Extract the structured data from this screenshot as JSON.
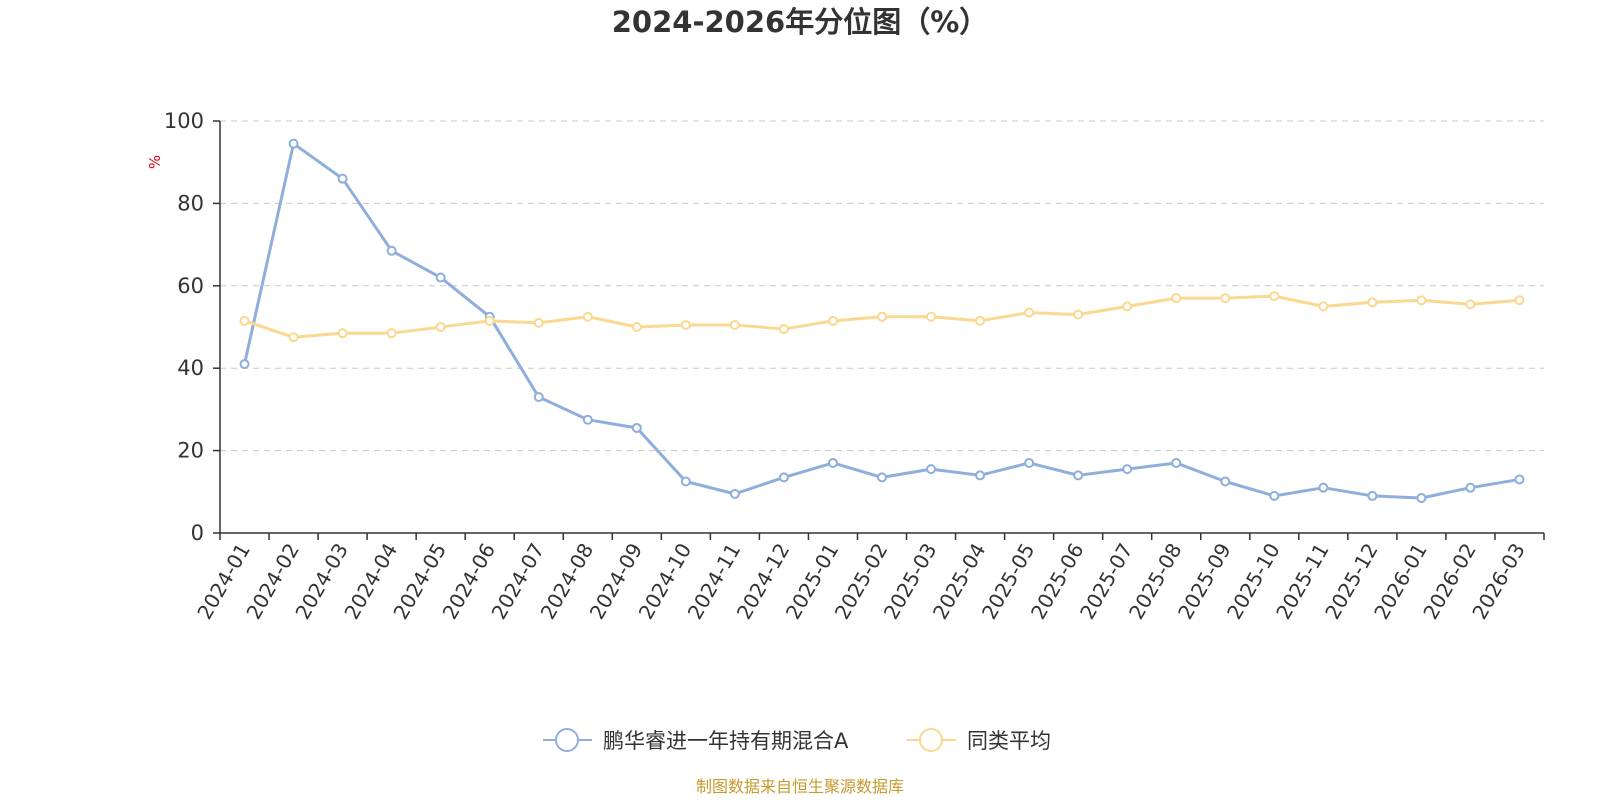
{
  "colors": {
    "series_a": "#8eaedc",
    "series_b": "#fbd88f",
    "grid": "#c8c8c8",
    "axis": "#333333",
    "unit": "#e8001c",
    "source": "#c79a2c"
  },
  "legend": {
    "series_a_label": "鹏华睿进一年持有期混合A",
    "series_b_label": "同类平均"
  },
  "source": "制图数据来自恒生聚源数据库",
  "chart_data": {
    "type": "line",
    "title": "2024-2026年分位图（%）",
    "ylabel": "%",
    "xlabel": "",
    "ylim": [
      0,
      100
    ],
    "yticks": [
      0,
      20,
      40,
      60,
      80,
      100
    ],
    "grid": true,
    "legend_position": "bottom-center",
    "categories": [
      "2024-01",
      "2024-02",
      "2024-03",
      "2024-04",
      "2024-05",
      "2024-06",
      "2024-07",
      "2024-08",
      "2024-09",
      "2024-10",
      "2024-11",
      "2024-12",
      "2025-01",
      "2025-02",
      "2025-03",
      "2025-04",
      "2025-05",
      "2025-06",
      "2025-07",
      "2025-08",
      "2025-09",
      "2025-10",
      "2025-11",
      "2025-12",
      "2026-01",
      "2026-02",
      "2026-03"
    ],
    "series": [
      {
        "name": "鹏华睿进一年持有期混合A",
        "values": [
          41,
          94.5,
          86,
          68.5,
          62,
          52.5,
          33,
          27.5,
          25.5,
          12.5,
          9.5,
          13.5,
          17,
          13.5,
          15.5,
          14,
          17,
          14,
          15.5,
          17,
          12.5,
          9,
          11,
          9,
          8.5,
          11,
          13
        ]
      },
      {
        "name": "同类平均",
        "values": [
          51.5,
          47.5,
          48.5,
          48.5,
          50,
          51.5,
          51,
          52.5,
          50,
          50.5,
          50.5,
          49.5,
          51.5,
          52.5,
          52.5,
          51.5,
          53.5,
          53,
          55,
          57,
          57,
          57.5,
          55,
          56,
          56.5,
          55.5,
          56.5
        ]
      }
    ]
  }
}
